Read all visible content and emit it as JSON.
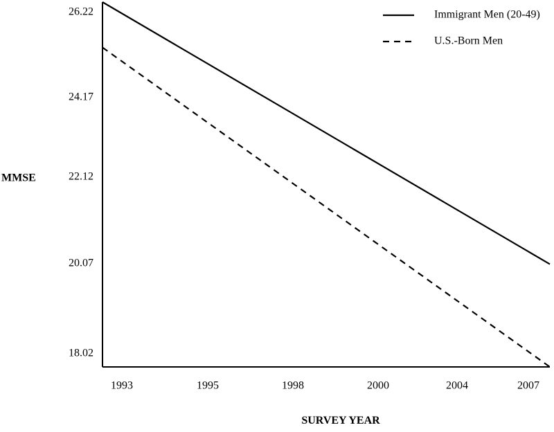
{
  "chart_data": {
    "type": "line",
    "title": "",
    "xlabel": "SURVEY YEAR",
    "ylabel": "MMSE",
    "categories": [
      "1993",
      "1995",
      "1998",
      "2000",
      "2004",
      "2007"
    ],
    "y_ticks": [
      "26.22",
      "24.17",
      "22.12",
      "20.07",
      "18.02"
    ],
    "ylim": [
      18.02,
      26.22
    ],
    "grid": false,
    "legend_position": "top-right",
    "series": [
      {
        "name": "Immigrant Men (20-49)",
        "style": "solid",
        "color": "#000000",
        "start": 26.22,
        "end": 20.33
      },
      {
        "name": "U.S.-Born Men",
        "style": "dashed",
        "color": "#000000",
        "start": 25.2,
        "end": 18.02
      }
    ]
  }
}
